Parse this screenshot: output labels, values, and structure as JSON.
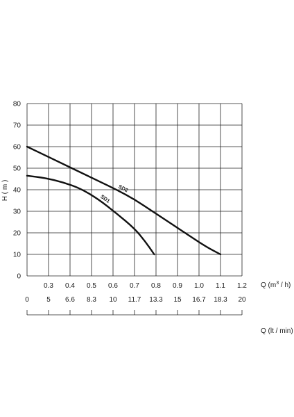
{
  "chart_data": {
    "type": "line",
    "ylabel": "H ( m )",
    "y_ticks": [
      "0",
      "10",
      "20",
      "30",
      "40",
      "50",
      "60",
      "70",
      "80"
    ],
    "ylim": [
      0,
      80
    ],
    "xlim_m3h": [
      0,
      1.2
    ],
    "x_ticks_m3h": [
      "0.3",
      "0.4",
      "0.5",
      "0.6",
      "0.7",
      "0.8",
      "0.9",
      "1.0",
      "1.1",
      "1.2"
    ],
    "x_ticks_lmin": [
      "0",
      "5",
      "6.6",
      "8.3",
      "10",
      "11.7",
      "13.3",
      "15",
      "16.7",
      "18.3",
      "20"
    ],
    "xlabel_m3h_prefix": "Q (m",
    "xlabel_m3h_sup": "3",
    "xlabel_m3h_suffix": " / h)",
    "xlabel_lmin": "Q (lt / min)",
    "grid": true,
    "series": [
      {
        "name": "SD2",
        "points": [
          [
            0,
            60
          ],
          [
            0.1,
            56
          ],
          [
            0.2,
            52
          ],
          [
            0.3,
            48
          ],
          [
            0.4,
            44
          ],
          [
            0.5,
            40
          ],
          [
            0.6,
            35.5
          ],
          [
            0.7,
            30
          ],
          [
            0.8,
            24.5
          ],
          [
            0.9,
            19
          ],
          [
            1.0,
            13.5
          ],
          [
            1.08,
            10
          ]
        ]
      },
      {
        "name": "SD1",
        "points": [
          [
            0,
            46.5
          ],
          [
            0.1,
            45.5
          ],
          [
            0.2,
            43.5
          ],
          [
            0.3,
            40.5
          ],
          [
            0.4,
            35.5
          ],
          [
            0.5,
            29
          ],
          [
            0.6,
            22
          ],
          [
            0.66,
            16
          ],
          [
            0.71,
            10
          ]
        ]
      }
    ]
  }
}
